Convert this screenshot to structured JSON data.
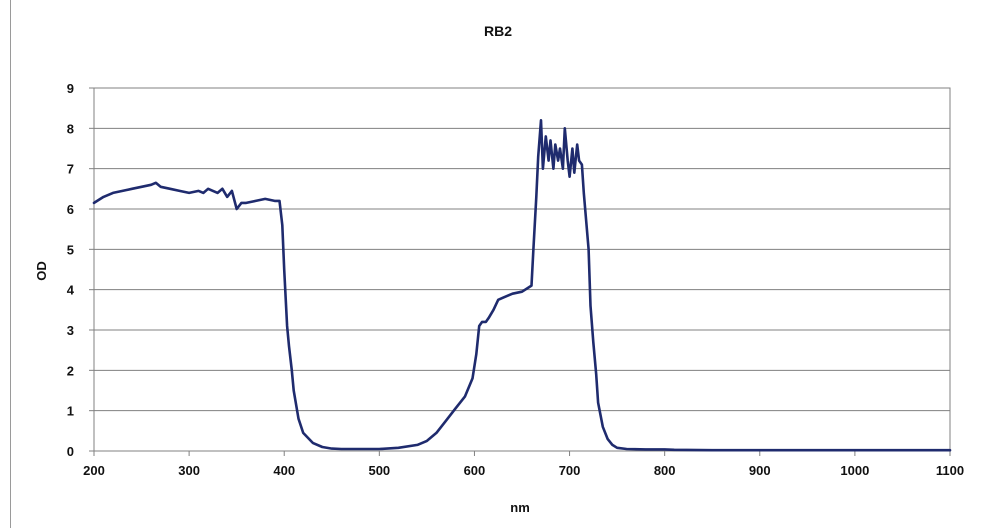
{
  "chart_data": {
    "type": "line",
    "title": "RB2",
    "xlabel": "nm",
    "ylabel": "OD",
    "xlim": [
      200,
      1100
    ],
    "ylim": [
      0,
      9
    ],
    "xticks": [
      200,
      300,
      400,
      500,
      600,
      700,
      800,
      900,
      1000,
      1100
    ],
    "yticks": [
      0,
      1,
      2,
      3,
      4,
      5,
      6,
      7,
      8,
      9
    ],
    "grid": "horizontal",
    "line_color": "#1f2b6e",
    "grid_color": "#808080",
    "series": [
      {
        "x": [
          200,
          210,
          220,
          230,
          240,
          250,
          260,
          265,
          270,
          280,
          290,
          300,
          310,
          315,
          320,
          330,
          335,
          340,
          345,
          350,
          355,
          360,
          370,
          380,
          390,
          395,
          398,
          400,
          403,
          405,
          408,
          410,
          415,
          420,
          430,
          440,
          450,
          460,
          480,
          500,
          520,
          540,
          550,
          560,
          570,
          580,
          590,
          598,
          602,
          605,
          608,
          612,
          615,
          620,
          625,
          630,
          635,
          640,
          650,
          660,
          662,
          665,
          667,
          670,
          672,
          675,
          678,
          680,
          683,
          685,
          688,
          690,
          693,
          695,
          698,
          700,
          703,
          705,
          708,
          710,
          713,
          715,
          720,
          722,
          725,
          728,
          730,
          735,
          740,
          745,
          750,
          760,
          780,
          800,
          810,
          850,
          900,
          1000,
          1100
        ],
        "values": [
          6.15,
          6.3,
          6.4,
          6.45,
          6.5,
          6.55,
          6.6,
          6.65,
          6.55,
          6.5,
          6.45,
          6.4,
          6.45,
          6.4,
          6.5,
          6.4,
          6.5,
          6.3,
          6.45,
          6.0,
          6.15,
          6.15,
          6.2,
          6.25,
          6.2,
          6.2,
          5.6,
          4.5,
          3.1,
          2.6,
          2.0,
          1.5,
          0.8,
          0.45,
          0.2,
          0.1,
          0.06,
          0.05,
          0.05,
          0.05,
          0.08,
          0.15,
          0.25,
          0.45,
          0.75,
          1.05,
          1.35,
          1.8,
          2.4,
          3.1,
          3.2,
          3.2,
          3.3,
          3.5,
          3.75,
          3.8,
          3.85,
          3.9,
          3.95,
          4.1,
          5.0,
          6.3,
          7.3,
          8.2,
          7.0,
          7.8,
          7.2,
          7.7,
          7.0,
          7.6,
          7.2,
          7.5,
          7.0,
          8.0,
          7.2,
          6.8,
          7.5,
          6.9,
          7.6,
          7.2,
          7.1,
          6.4,
          5.0,
          3.6,
          2.7,
          1.9,
          1.2,
          0.6,
          0.3,
          0.15,
          0.08,
          0.05,
          0.04,
          0.04,
          0.03,
          0.02,
          0.02,
          0.02,
          0.02
        ]
      }
    ]
  }
}
